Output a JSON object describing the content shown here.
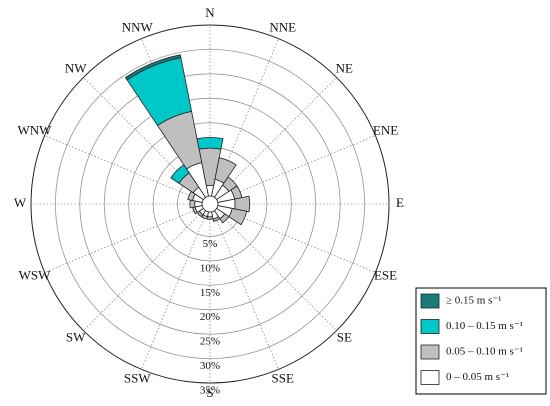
{
  "chart_data": {
    "type": "windrose",
    "categories": [
      "N",
      "NNE",
      "NE",
      "ENE",
      "E",
      "ESE",
      "SE",
      "SSE",
      "S",
      "SSW",
      "SW",
      "WSW",
      "W",
      "WNW",
      "NW",
      "NNW"
    ],
    "rlim": [
      0,
      35
    ],
    "rticks": [
      {
        "value": 5,
        "label": "5%"
      },
      {
        "value": 10,
        "label": "10%"
      },
      {
        "value": 15,
        "label": "15%"
      },
      {
        "value": 20,
        "label": "20%"
      },
      {
        "value": 25,
        "label": "25%"
      },
      {
        "value": 30,
        "label": "30%"
      },
      {
        "value": 35,
        "label": "35%"
      }
    ],
    "series": [
      {
        "name": "≥ 0.15 m s⁻¹",
        "color": "#1b7b78",
        "values": [
          0,
          0,
          0,
          0,
          0,
          0,
          0,
          0,
          0,
          0,
          0,
          0,
          0,
          0,
          0,
          0.6
        ]
      },
      {
        "name": "0.10 – 0.15 m s⁻¹",
        "color": "#00c8c8",
        "values": [
          2.2,
          0,
          0,
          0,
          0,
          0,
          0,
          0,
          0,
          0,
          0,
          0,
          0,
          0,
          2,
          11.2
        ]
      },
      {
        "name": "0.05 – 0.10 m s⁻¹",
        "color": "#bfbfbf",
        "values": [
          7.6,
          4.5,
          2,
          1.5,
          3,
          3,
          1,
          0.5,
          0.5,
          0.5,
          0.5,
          0.5,
          1,
          1,
          3.5,
          10.7
        ]
      },
      {
        "name": "0 – 0.05 m s⁻¹",
        "color": "#ffffff",
        "values": [
          2.2,
          3.5,
          3,
          3.5,
          3.5,
          3,
          2,
          1.5,
          1,
          1,
          1,
          1.5,
          1.5,
          2,
          2.5,
          7
        ]
      }
    ]
  }
}
